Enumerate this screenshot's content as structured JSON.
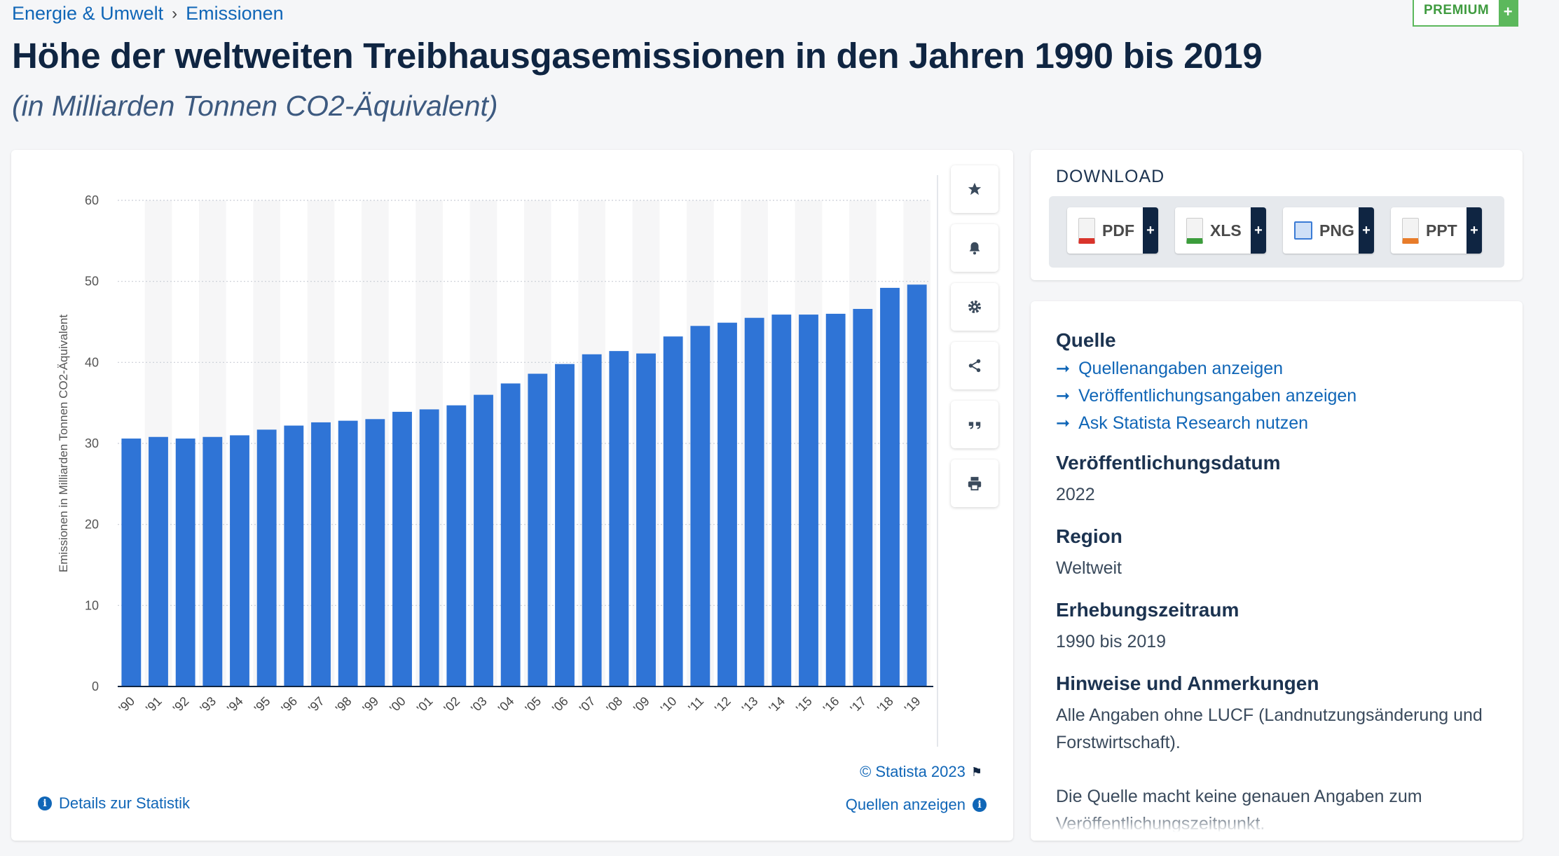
{
  "breadcrumb": {
    "category": "Energie & Umwelt",
    "separator": "›",
    "current": "Emissionen"
  },
  "premium": {
    "label": "PREMIUM",
    "plus": "+"
  },
  "page": {
    "title": "Höhe der weltweiten Treibhausgasemissionen in den Jahren 1990 bis 2019",
    "subtitle": "(in Milliarden Tonnen CO2-Äquivalent)"
  },
  "chart_data": {
    "type": "bar",
    "categories": [
      "'90",
      "'91",
      "'92",
      "'93",
      "'94",
      "'95",
      "'96",
      "'97",
      "'98",
      "'99",
      "'00",
      "'01",
      "'02",
      "'03",
      "'04",
      "'05",
      "'06",
      "'07",
      "'08",
      "'09",
      "'10",
      "'11",
      "'12",
      "'13",
      "'14",
      "'15",
      "'16",
      "'17",
      "'18",
      "'19"
    ],
    "values": [
      30.6,
      30.8,
      30.6,
      30.8,
      31.0,
      31.7,
      32.2,
      32.6,
      32.8,
      33.0,
      33.9,
      34.2,
      34.7,
      36.0,
      37.4,
      38.6,
      39.8,
      41.0,
      41.4,
      41.1,
      43.2,
      44.5,
      44.9,
      45.5,
      45.9,
      45.9,
      46.0,
      46.6,
      49.2,
      49.6
    ],
    "ylabel": "Emissionen in Milliarden Tonnen CO2-Äquivalent",
    "xlabel": "",
    "ylim": [
      0,
      60
    ],
    "yticks": [
      0,
      10,
      20,
      30,
      40,
      50,
      60
    ],
    "grid": true,
    "bar_color": "#2f74d6"
  },
  "tools": {
    "icons": [
      "star-icon",
      "bell-icon",
      "gear-icon",
      "share-icon",
      "quote-icon",
      "print-icon"
    ]
  },
  "footer": {
    "copyright": "© Statista 2023",
    "details": "Details zur Statistik",
    "sources": "Quellen anzeigen"
  },
  "download": {
    "title": "DOWNLOAD",
    "formats": [
      {
        "label": "PDF",
        "color": "#d9342b"
      },
      {
        "label": "XLS",
        "color": "#3b9d3b"
      },
      {
        "label": "PNG",
        "color": "#3a7bd5"
      },
      {
        "label": "PPT",
        "color": "#e87c2a"
      }
    ],
    "plus": "+"
  },
  "info": {
    "source_heading": "Quelle",
    "links": [
      "Quellenangaben anzeigen",
      "Veröffentlichungsangaben anzeigen",
      "Ask Statista Research nutzen"
    ],
    "pubdate_heading": "Veröffentlichungsdatum",
    "pubdate": "2022",
    "region_heading": "Region",
    "region": "Weltweit",
    "period_heading": "Erhebungszeitraum",
    "period": "1990 bis 2019",
    "notes_heading": "Hinweise und Anmerkungen",
    "notes": "Alle Angaben ohne LUCF (Landnutzungsänderung und Forstwirtschaft).",
    "notes2": "Die Quelle macht keine genauen Angaben zum Veröffentlichungszeitpunkt."
  }
}
